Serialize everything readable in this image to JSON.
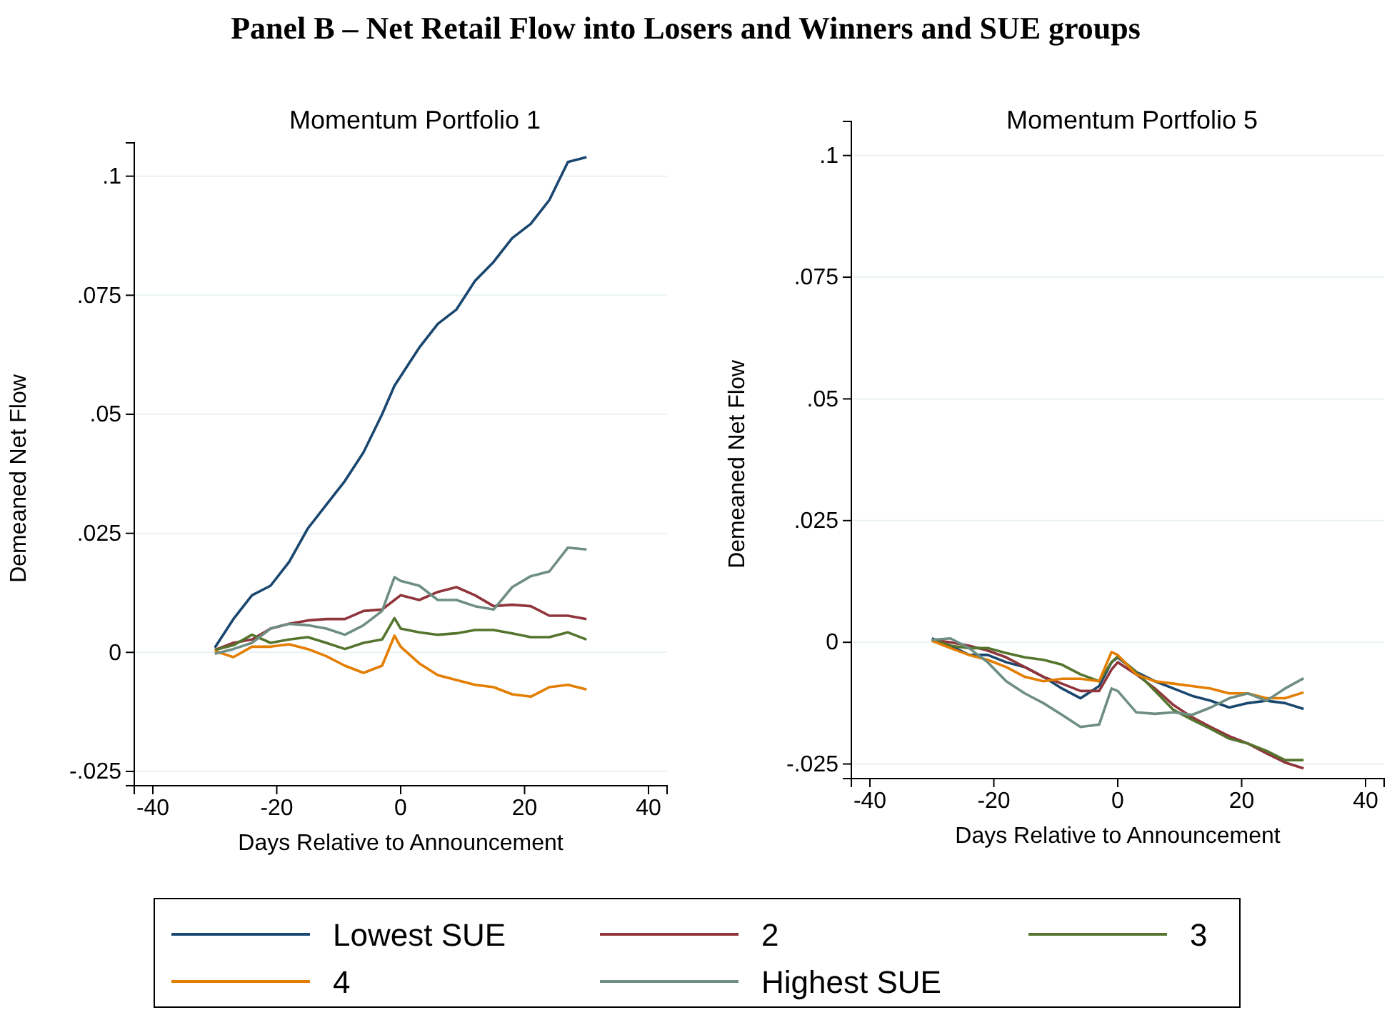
{
  "chart_data": [
    {
      "type": "line",
      "title": "Panel B – Net Retail Flow into Losers and Winners and SUE groups",
      "subtitle": "Momentum Portfolio 1",
      "xlabel": "Days Relative to Announcement",
      "ylabel": "Demeaned Net Flow",
      "x": [
        -30,
        -27,
        -24,
        -21,
        -18,
        -15,
        -12,
        -9,
        -6,
        -3,
        -1,
        0,
        3,
        6,
        9,
        12,
        15,
        18,
        21,
        24,
        27,
        30
      ],
      "xlim": [
        -43,
        43
      ],
      "xticks": [
        -40,
        -20,
        0,
        20,
        40
      ],
      "ylim": [
        -0.028,
        0.107
      ],
      "yticks": [
        {
          "value": -0.025,
          "label": "-.025"
        },
        0,
        {
          "value": 0.025,
          "label": ".025"
        },
        {
          "value": 0.05,
          "label": ".05"
        },
        {
          "value": 0.075,
          "label": ".075"
        },
        {
          "value": 0.1,
          "label": ".1"
        }
      ],
      "grid": "y",
      "legend": "bottom",
      "line_style": "solid",
      "series": [
        {
          "name": "Lowest SUE",
          "color": "#1a476f",
          "values": [
            0.001,
            0.007,
            0.012,
            0.014,
            0.019,
            0.026,
            0.031,
            0.036,
            0.042,
            0.05,
            0.056,
            0.058,
            0.064,
            0.069,
            0.072,
            0.078,
            0.082,
            0.087,
            0.09,
            0.095,
            0.103,
            0.104
          ]
        },
        {
          "name": "2",
          "color": "#90353b",
          "values": [
            0.0005,
            0.002,
            0.0027,
            0.005,
            0.006,
            0.0067,
            0.007,
            0.007,
            0.0087,
            0.009,
            0.011,
            0.012,
            0.011,
            0.0127,
            0.0137,
            0.012,
            0.0097,
            0.01,
            0.0097,
            0.0077,
            0.0077,
            0.007
          ]
        },
        {
          "name": "3",
          "color": "#55752f",
          "values": [
            0.0005,
            0.0015,
            0.0037,
            0.002,
            0.0027,
            0.0032,
            0.002,
            0.0007,
            0.002,
            0.0027,
            0.0072,
            0.005,
            0.0042,
            0.0037,
            0.004,
            0.0047,
            0.0047,
            0.004,
            0.0032,
            0.0032,
            0.0042,
            0.0027
          ]
        },
        {
          "name": "4",
          "color": "#e37e00",
          "values": [
            0.0003,
            -0.001,
            0.0012,
            0.0012,
            0.0017,
            0.0007,
            -0.0008,
            -0.0028,
            -0.0043,
            -0.0028,
            0.0035,
            0.0012,
            -0.0023,
            -0.0048,
            -0.0058,
            -0.0068,
            -0.0073,
            -0.0088,
            -0.0093,
            -0.0073,
            -0.0068,
            -0.0078
          ]
        },
        {
          "name": "Highest SUE",
          "color": "#6e8e84",
          "values": [
            -0.0003,
            0.0007,
            0.002,
            0.005,
            0.006,
            0.0057,
            0.005,
            0.0037,
            0.0057,
            0.0087,
            0.0158,
            0.015,
            0.014,
            0.011,
            0.011,
            0.0097,
            0.009,
            0.0137,
            0.016,
            0.017,
            0.022,
            0.0216
          ]
        }
      ]
    },
    {
      "type": "line",
      "title": "Momentum Portfolio 5",
      "xlabel": "Days Relative to Announcement",
      "ylabel": "Demeaned Net Flow",
      "x": [
        -30,
        -27,
        -24,
        -21,
        -18,
        -15,
        -12,
        -9,
        -6,
        -3,
        -1,
        0,
        3,
        6,
        9,
        12,
        15,
        18,
        21,
        24,
        27,
        30
      ],
      "xlim": [
        -43,
        43
      ],
      "xticks": [
        -40,
        -20,
        0,
        20,
        40
      ],
      "ylim": [
        -0.028,
        0.107
      ],
      "yticks": [
        {
          "value": -0.025,
          "label": "-.025"
        },
        0,
        {
          "value": 0.025,
          "label": ".025"
        },
        {
          "value": 0.05,
          "label": ".05"
        },
        {
          "value": 0.075,
          "label": ".075"
        },
        {
          "value": 0.1,
          "label": ".1"
        }
      ],
      "grid": "y",
      "line_style": "solid",
      "series": [
        {
          "color": "#1a476f",
          "values": [
            0.0008,
            -0.0007,
            -0.0026,
            -0.0026,
            -0.0041,
            -0.0051,
            -0.0071,
            -0.0095,
            -0.0115,
            -0.009,
            -0.0041,
            -0.0031,
            -0.0061,
            -0.008,
            -0.0095,
            -0.011,
            -0.012,
            -0.0134,
            -0.0125,
            -0.012,
            -0.0125,
            -0.0137
          ]
        },
        {
          "color": "#90353b",
          "values": [
            0.0005,
            0,
            -0.0007,
            -0.0017,
            -0.0031,
            -0.0051,
            -0.0071,
            -0.0085,
            -0.01,
            -0.01,
            -0.0056,
            -0.0041,
            -0.0066,
            -0.0095,
            -0.0129,
            -0.0154,
            -0.0174,
            -0.0193,
            -0.0208,
            -0.0228,
            -0.0247,
            -0.0259
          ]
        },
        {
          "color": "#55752f",
          "values": [
            0.0006,
            -0.0007,
            -0.0012,
            -0.0012,
            -0.0022,
            -0.0031,
            -0.0036,
            -0.0046,
            -0.0066,
            -0.008,
            -0.0041,
            -0.0029,
            -0.0061,
            -0.01,
            -0.0139,
            -0.0159,
            -0.0178,
            -0.0198,
            -0.0208,
            -0.0223,
            -0.0242,
            -0.0242
          ]
        },
        {
          "color": "#e37e00",
          "values": [
            0.0003,
            -0.0012,
            -0.0026,
            -0.0036,
            -0.0051,
            -0.0071,
            -0.008,
            -0.0075,
            -0.0075,
            -0.008,
            -0.002,
            -0.0026,
            -0.0066,
            -0.008,
            -0.0085,
            -0.009,
            -0.0095,
            -0.0105,
            -0.0105,
            -0.0115,
            -0.0115,
            -0.0103
          ]
        },
        {
          "color": "#6e8e84",
          "values": [
            0.0005,
            0.0008,
            -0.0012,
            -0.0041,
            -0.008,
            -0.0105,
            -0.0125,
            -0.0149,
            -0.0174,
            -0.0169,
            -0.0095,
            -0.01,
            -0.0144,
            -0.0147,
            -0.0144,
            -0.0149,
            -0.0134,
            -0.0115,
            -0.0105,
            -0.012,
            -0.0095,
            -0.0074
          ]
        }
      ]
    }
  ]
}
